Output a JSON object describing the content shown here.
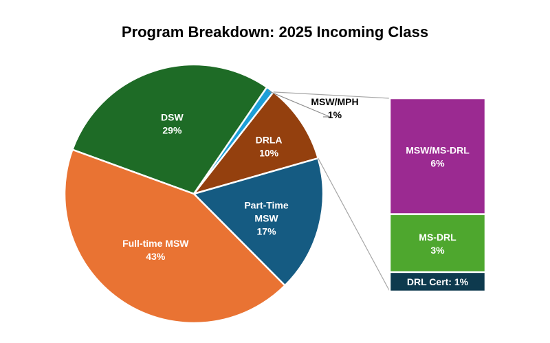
{
  "chart_data": {
    "type": "pie",
    "title": "Program Breakdown: 2025 Incoming Class",
    "slices": [
      {
        "label": "DSW",
        "value": 29,
        "value_label": "29%",
        "color": "#1e6b26"
      },
      {
        "label": "MSW/MPH",
        "value": 1,
        "value_label": "1%",
        "color": "#1d9fd8"
      },
      {
        "label": "DRLA",
        "value": 10,
        "value_label": "10%",
        "color": "#94400e"
      },
      {
        "label": "Part-Time MSW",
        "value": 17,
        "value_label": "17%",
        "color": "#155b82"
      },
      {
        "label": "Full-time MSW",
        "value": 43,
        "value_label": "43%",
        "color": "#e97333"
      }
    ],
    "breakdown": {
      "of": "DRLA",
      "segments": [
        {
          "label": "MSW/MS-DRL",
          "value": 6,
          "value_label": "6%",
          "color": "#9b2a91"
        },
        {
          "label": "MS-DRL",
          "value": 3,
          "value_label": "3%",
          "color": "#4ea72e"
        },
        {
          "label": "DRL Cert: 1%",
          "value": 1,
          "value_label": "",
          "color": "#0e3a4e"
        }
      ]
    }
  }
}
